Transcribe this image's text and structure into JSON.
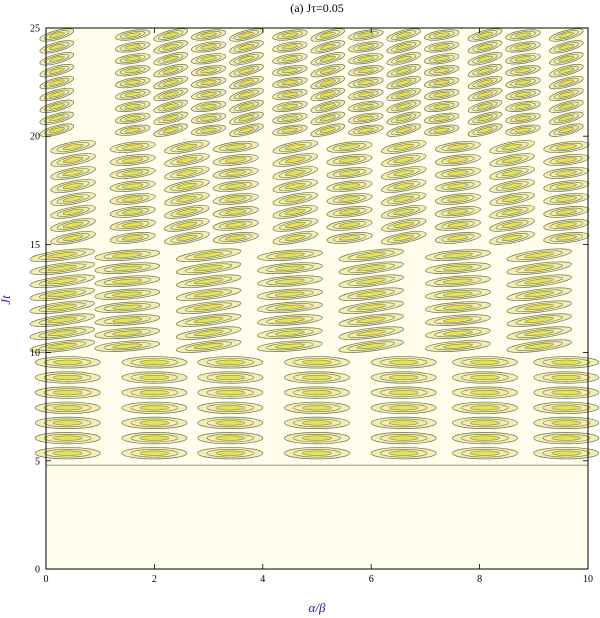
{
  "chart_data": {
    "type": "heatmap",
    "title": "(a) Jτ=0.05",
    "xlabel": "α/β",
    "ylabel": "Jt",
    "xlim": [
      0,
      10
    ],
    "ylim": [
      0,
      25
    ],
    "xticks": [
      "0",
      "2",
      "4",
      "6",
      "8",
      "10"
    ],
    "yticks": [
      "0",
      "5",
      "10",
      "15",
      "20",
      "25"
    ],
    "x_tick_values": [
      0,
      2,
      4,
      6,
      8,
      10
    ],
    "y_tick_values": [
      0,
      5,
      10,
      15,
      20,
      25
    ],
    "onset_jt": 4.8,
    "colors": {
      "background": "#fffdec",
      "contour_line": "#6f7154",
      "peak_fill": "#e8e34a",
      "mid_fill": "#f2efb0",
      "frame": "#000000"
    },
    "regions": [
      {
        "jt_range": [
          5,
          10
        ],
        "x_centers": [
          0.4,
          2.0,
          3.4,
          5.0,
          6.6,
          8.1,
          9.6
        ],
        "row_spacing": 0.7,
        "slant": 0
      },
      {
        "jt_range": [
          10,
          15
        ],
        "x_centers": [
          0.3,
          1.5,
          3.0,
          4.5,
          6.0,
          7.6,
          9.1
        ],
        "row_spacing": 0.6,
        "slant": 0.12
      },
      {
        "jt_range": [
          15,
          20
        ],
        "x_centers": [
          0.5,
          1.6,
          2.6,
          3.5,
          4.6,
          5.6,
          6.6,
          7.6,
          8.6,
          9.6
        ],
        "row_spacing": 0.6,
        "slant": 0.18
      },
      {
        "jt_range": [
          20,
          25
        ],
        "x_centers": [
          0.2,
          1.6,
          2.3,
          3.0,
          3.7,
          4.5,
          5.2,
          5.9,
          6.6,
          7.3,
          8.1,
          8.8,
          9.6
        ],
        "row_spacing": 0.55,
        "slant": 0.25
      }
    ]
  }
}
